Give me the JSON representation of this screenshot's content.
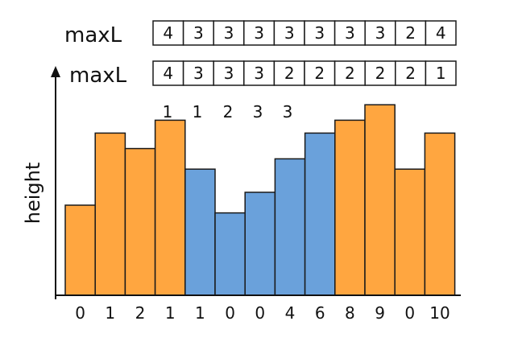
{
  "colors": {
    "orange": "#ffa640",
    "blue": "#6aa1db",
    "border": "#1a1a1a",
    "text": "#111111"
  },
  "rows": [
    {
      "label": "maxL",
      "values": [
        "4",
        "3",
        "3",
        "3",
        "3",
        "3",
        "3",
        "3",
        "2",
        "4"
      ]
    },
    {
      "label": "maxL",
      "values": [
        "4",
        "3",
        "3",
        "3",
        "2",
        "2",
        "2",
        "2",
        "2",
        "1"
      ]
    }
  ],
  "counts": [
    "1",
    "1",
    "2",
    "3",
    "3"
  ],
  "chart_data": {
    "type": "bar",
    "ylabel": "height",
    "xlabel": "",
    "categories": [
      "0",
      "1",
      "2",
      "1",
      "1",
      "0",
      "0",
      "4",
      "6",
      "8",
      "9",
      "0",
      "10"
    ],
    "values": [
      3.5,
      6.3,
      5.7,
      6.8,
      4.9,
      3.2,
      4.0,
      5.3,
      6.3,
      6.8,
      7.4,
      4.9,
      6.3
    ],
    "colors": [
      "orange",
      "orange",
      "orange",
      "orange",
      "blue",
      "blue",
      "blue",
      "blue",
      "blue",
      "orange",
      "orange",
      "orange",
      "orange"
    ],
    "ylim": [
      0,
      8.5
    ],
    "grid": false,
    "legend": "none"
  }
}
